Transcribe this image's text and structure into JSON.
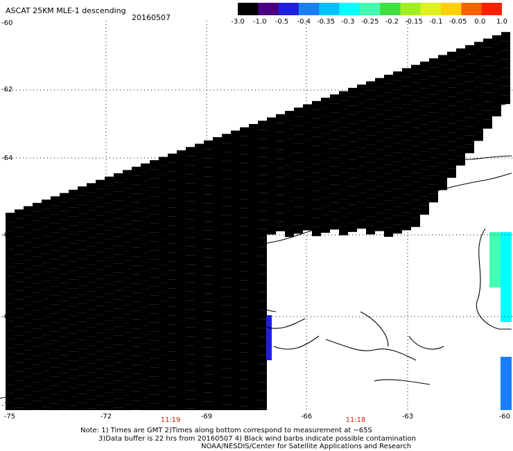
{
  "header": {
    "title": "ASCAT 25KM MLE-1 descending",
    "date": "20160507"
  },
  "colorbar": {
    "labels": [
      "-3.0",
      "-1.0",
      "-0.5",
      "-0.4",
      "-0.35",
      "-0.3",
      "-0.25",
      "-0.2",
      "-0.15",
      "-0.1",
      "-0.05",
      "0.0",
      "1.0"
    ],
    "colors": [
      "#000000",
      "#4b0082",
      "#1f1fe0",
      "#1a7fff",
      "#00c0ff",
      "#00ffff",
      "#40ffb0",
      "#40e040",
      "#a0f020",
      "#e0f020",
      "#ffd000",
      "#ff6000",
      "#ff2000"
    ]
  },
  "axes": {
    "lat_labels": [
      "-60",
      "-62",
      "-64",
      "-66",
      "-68",
      "-70"
    ],
    "lon_labels": [
      "-75",
      "-72",
      "-69",
      "-66",
      "-63",
      "-60"
    ]
  },
  "times": [
    "11:19",
    "11:18"
  ],
  "notes": {
    "line1": "Note: 1) Times are GMT 2)Times along bottom correspond to measurement at ~65S",
    "line2": "3)Data buffer is 22 hrs from 20160507 4) Black wind barbs indicate possible contamination",
    "line3": "NOAA/NESDIS/Center for Satellite Applications and Research"
  }
}
